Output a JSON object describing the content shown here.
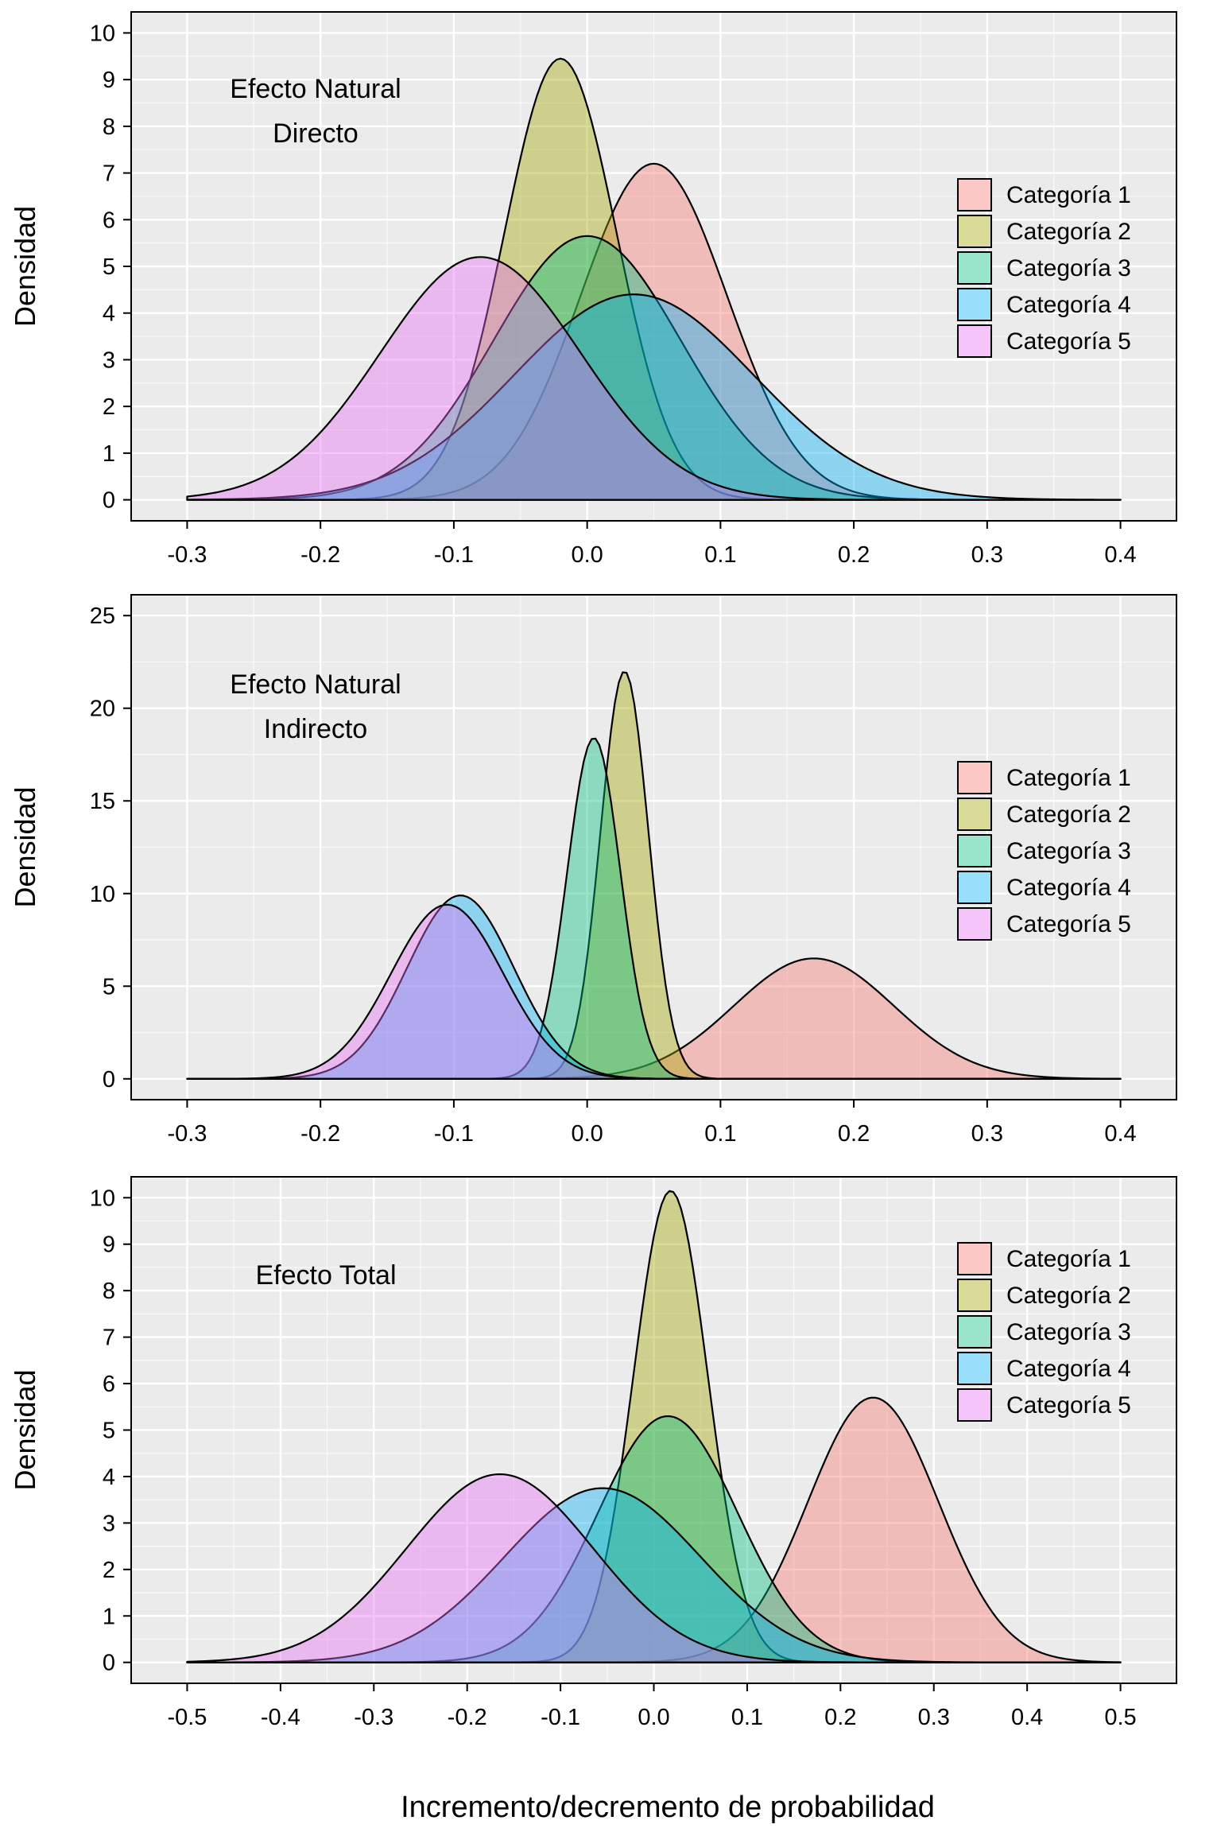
{
  "xlabel": "Incremento/decremento de probabilidad",
  "legend": [
    "Categoría 1",
    "Categoría 2",
    "Categoría 3",
    "Categoría 4",
    "Categoría 5"
  ],
  "colors": {
    "panel_background": "#ebebeb",
    "gridline": "#ffffff",
    "series": [
      "#F8766D",
      "#A3A500",
      "#00BF7D",
      "#00B0F6",
      "#E76BF3"
    ]
  },
  "chart_data": [
    {
      "type": "area",
      "annotation": [
        "Efecto Natural",
        "Directo"
      ],
      "ylabel": "Densidad",
      "xlim": [
        -0.3,
        0.4
      ],
      "ylim": [
        0,
        10
      ],
      "x_ticks": [
        "-0.3",
        "-0.2",
        "-0.1",
        "0.0",
        "0.1",
        "0.2",
        "0.3",
        "0.4"
      ],
      "y_ticks": [
        "0",
        "1",
        "2",
        "3",
        "4",
        "5",
        "6",
        "7",
        "8",
        "9",
        "10"
      ],
      "grid": true,
      "legend_position": "right",
      "series": [
        {
          "name": "Categoría 1",
          "mean": 0.05,
          "sd": 0.055,
          "peak": 7.2
        },
        {
          "name": "Categoría 2",
          "mean": -0.02,
          "sd": 0.042,
          "peak": 9.45
        },
        {
          "name": "Categoría 3",
          "mean": 0.0,
          "sd": 0.07,
          "peak": 5.65
        },
        {
          "name": "Categoría 4",
          "mean": 0.035,
          "sd": 0.09,
          "peak": 4.4
        },
        {
          "name": "Categoría 5",
          "mean": -0.08,
          "sd": 0.075,
          "peak": 5.2
        }
      ]
    },
    {
      "type": "area",
      "annotation": [
        "Efecto Natural",
        "Indirecto"
      ],
      "ylabel": "Densidad",
      "xlim": [
        -0.3,
        0.4
      ],
      "ylim": [
        0,
        25
      ],
      "x_ticks": [
        "-0.3",
        "-0.2",
        "-0.1",
        "0.0",
        "0.1",
        "0.2",
        "0.3",
        "0.4"
      ],
      "y_ticks": [
        "0",
        "5",
        "10",
        "15",
        "20",
        "25"
      ],
      "grid": true,
      "legend_position": "right",
      "series": [
        {
          "name": "Categoría 1",
          "mean": 0.17,
          "sd": 0.06,
          "peak": 6.5
        },
        {
          "name": "Categoría 2",
          "mean": 0.028,
          "sd": 0.018,
          "peak": 22.0
        },
        {
          "name": "Categoría 3",
          "mean": 0.005,
          "sd": 0.02,
          "peak": 18.4
        },
        {
          "name": "Categoría 4",
          "mean": -0.095,
          "sd": 0.04,
          "peak": 9.9
        },
        {
          "name": "Categoría 5",
          "mean": -0.105,
          "sd": 0.042,
          "peak": 9.4
        }
      ]
    },
    {
      "type": "area",
      "annotation": [
        "Efecto Total"
      ],
      "ylabel": "Densidad",
      "xlim": [
        -0.5,
        0.5
      ],
      "ylim": [
        0,
        10
      ],
      "x_ticks": [
        "-0.5",
        "-0.4",
        "-0.3",
        "-0.2",
        "-0.1",
        "0.0",
        "0.1",
        "0.2",
        "0.3",
        "0.4",
        "0.5"
      ],
      "y_ticks": [
        "0",
        "1",
        "2",
        "3",
        "4",
        "5",
        "6",
        "7",
        "8",
        "9",
        "10"
      ],
      "grid": true,
      "legend_position": "top-right",
      "series": [
        {
          "name": "Categoría 1",
          "mean": 0.235,
          "sd": 0.07,
          "peak": 5.7
        },
        {
          "name": "Categoría 2",
          "mean": 0.018,
          "sd": 0.04,
          "peak": 10.15
        },
        {
          "name": "Categoría 3",
          "mean": 0.015,
          "sd": 0.075,
          "peak": 5.3
        },
        {
          "name": "Categoría 4",
          "mean": -0.055,
          "sd": 0.105,
          "peak": 3.75
        },
        {
          "name": "Categoría 5",
          "mean": -0.165,
          "sd": 0.1,
          "peak": 4.05
        }
      ]
    }
  ]
}
